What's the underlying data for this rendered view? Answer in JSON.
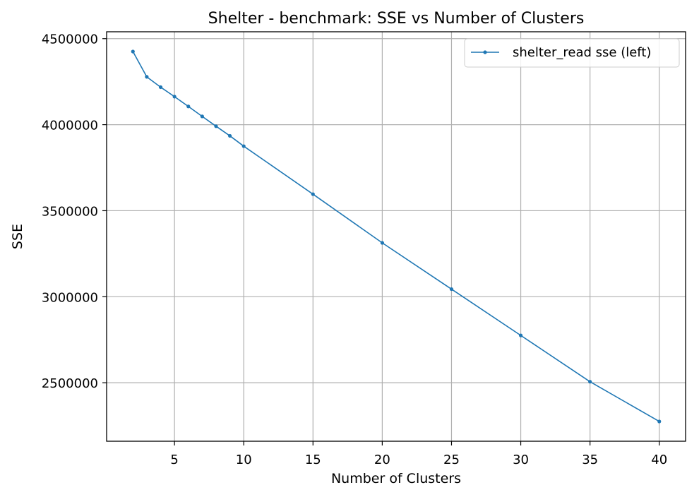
{
  "chart_data": {
    "type": "line",
    "title": "Shelter - benchmark: SSE vs Number of Clusters",
    "xlabel": "Number of Clusters",
    "ylabel": "SSE",
    "xlim": [
      0.1,
      41.9
    ],
    "ylim": [
      2160000,
      4540000
    ],
    "xticks": [
      5,
      10,
      15,
      20,
      25,
      30,
      35,
      40
    ],
    "yticks": [
      2500000,
      3000000,
      3500000,
      4000000,
      4500000
    ],
    "grid": true,
    "legend_position": "top-right",
    "series": [
      {
        "name": "shelter_read sse (left)",
        "color": "#1f77b4",
        "x": [
          2,
          3,
          4,
          5,
          6,
          7,
          8,
          9,
          10,
          15,
          20,
          25,
          30,
          35,
          40
        ],
        "y": [
          4425000,
          4278000,
          4218000,
          4163000,
          4106000,
          4048000,
          3991000,
          3935000,
          3875000,
          3596000,
          3313000,
          3044000,
          2775000,
          2506000,
          2275000
        ]
      }
    ]
  }
}
